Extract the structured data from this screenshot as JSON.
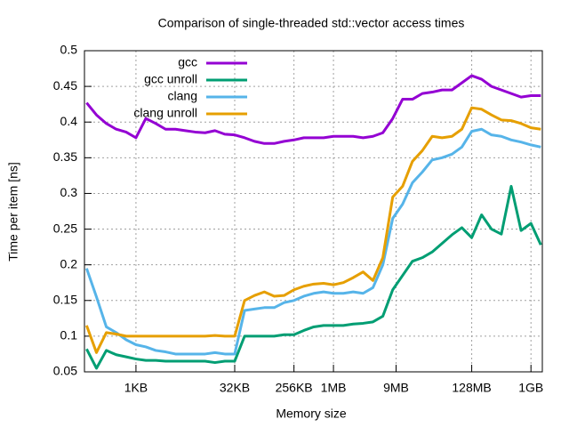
{
  "chart_data": {
    "type": "line",
    "title": "Comparison of single-threaded std::vector access times",
    "x_label": "Memory size",
    "y_label": "Time per item [ns]",
    "x_scale": "log",
    "grid": true,
    "legend_position": "top-left",
    "x": [
      181,
      256,
      362,
      512,
      724,
      1024,
      1448,
      2048,
      2896,
      4096,
      5793,
      8192,
      11585,
      16384,
      23170,
      32768,
      46341,
      65536,
      92682,
      131072,
      185364,
      262144,
      370728,
      524288,
      741455,
      1048576,
      1482910,
      2097152,
      2965821,
      4194304,
      5931642,
      8388608,
      11863283,
      16777216,
      23726566,
      33554432,
      47453133,
      67108864,
      94906266,
      134217728,
      189812531,
      268435456,
      379625062,
      536870912,
      759250125,
      1073741824,
      1518500250
    ],
    "xlim": [
      168,
      1600000000
    ],
    "xticks": [
      {
        "value": 1024,
        "label": "1KB"
      },
      {
        "value": 32768,
        "label": "32KB"
      },
      {
        "value": 262144,
        "label": "256KB"
      },
      {
        "value": 1048576,
        "label": "1MB"
      },
      {
        "value": 9437184,
        "label": "9MB"
      },
      {
        "value": 134217728,
        "label": "128MB"
      },
      {
        "value": 1073741824,
        "label": "1GB"
      }
    ],
    "ylim": [
      0.05,
      0.5
    ],
    "yticks": [
      0.05,
      0.1,
      0.15,
      0.2,
      0.25,
      0.3,
      0.35,
      0.4,
      0.45,
      0.5
    ],
    "series": [
      {
        "name": "gcc",
        "color": "#9400d3",
        "values": [
          0.427,
          0.41,
          0.398,
          0.39,
          0.386,
          0.378,
          0.405,
          0.398,
          0.39,
          0.39,
          0.388,
          0.386,
          0.385,
          0.388,
          0.383,
          0.382,
          0.378,
          0.373,
          0.37,
          0.37,
          0.373,
          0.375,
          0.378,
          0.378,
          0.378,
          0.38,
          0.38,
          0.38,
          0.378,
          0.38,
          0.385,
          0.405,
          0.432,
          0.432,
          0.44,
          0.442,
          0.445,
          0.445,
          0.455,
          0.465,
          0.46,
          0.45,
          0.445,
          0.44,
          0.435,
          0.437,
          0.437
        ]
      },
      {
        "name": "gcc unroll",
        "color": "#009e73",
        "values": [
          0.082,
          0.055,
          0.08,
          0.074,
          0.071,
          0.068,
          0.066,
          0.066,
          0.065,
          0.065,
          0.065,
          0.065,
          0.065,
          0.063,
          0.065,
          0.065,
          0.1,
          0.1,
          0.1,
          0.1,
          0.102,
          0.102,
          0.108,
          0.113,
          0.115,
          0.115,
          0.115,
          0.117,
          0.118,
          0.12,
          0.128,
          0.165,
          0.185,
          0.205,
          0.21,
          0.218,
          0.23,
          0.242,
          0.252,
          0.238,
          0.27,
          0.25,
          0.243,
          0.31,
          0.248,
          0.258,
          0.228
        ]
      },
      {
        "name": "clang",
        "color": "#56b4e9",
        "values": [
          0.195,
          0.155,
          0.113,
          0.105,
          0.095,
          0.088,
          0.085,
          0.08,
          0.078,
          0.075,
          0.075,
          0.075,
          0.075,
          0.077,
          0.075,
          0.075,
          0.136,
          0.138,
          0.14,
          0.14,
          0.147,
          0.15,
          0.156,
          0.16,
          0.162,
          0.16,
          0.16,
          0.162,
          0.16,
          0.168,
          0.2,
          0.265,
          0.285,
          0.315,
          0.33,
          0.347,
          0.35,
          0.355,
          0.365,
          0.387,
          0.39,
          0.382,
          0.38,
          0.375,
          0.372,
          0.368,
          0.365
        ]
      },
      {
        "name": "clang unroll",
        "color": "#e69f00",
        "values": [
          0.115,
          0.077,
          0.105,
          0.103,
          0.1,
          0.1,
          0.1,
          0.1,
          0.1,
          0.1,
          0.1,
          0.1,
          0.1,
          0.101,
          0.1,
          0.1,
          0.15,
          0.157,
          0.162,
          0.156,
          0.157,
          0.165,
          0.17,
          0.173,
          0.174,
          0.172,
          0.175,
          0.182,
          0.19,
          0.178,
          0.21,
          0.295,
          0.31,
          0.345,
          0.36,
          0.38,
          0.378,
          0.38,
          0.39,
          0.42,
          0.418,
          0.41,
          0.403,
          0.402,
          0.398,
          0.392,
          0.39
        ]
      }
    ]
  }
}
